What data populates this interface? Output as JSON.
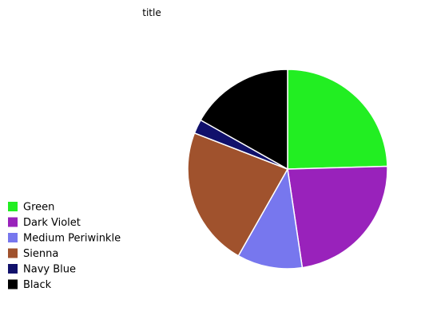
{
  "chart_data": {
    "type": "pie",
    "title": "title",
    "categories": [
      "Green",
      "Dark Violet",
      "Medium Periwinkle",
      "Sienna",
      "Navy Blue",
      "Black"
    ],
    "values": [
      23.5,
      22.1,
      10.1,
      21.7,
      2.2,
      16.1
    ],
    "colors": [
      "#22ee22",
      "#9922bb",
      "#7777ee",
      "#a0522d",
      "#11116b",
      "#000000"
    ],
    "start_angle_deg": 90,
    "direction": "clockwise",
    "legend_position": "left"
  }
}
